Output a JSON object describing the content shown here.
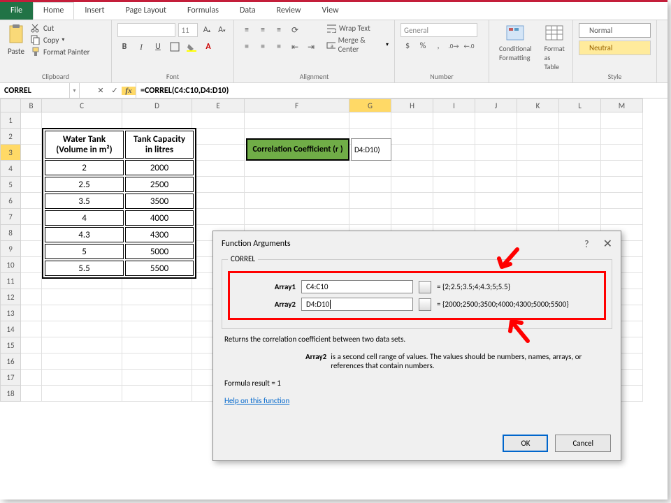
{
  "tabs": {
    "file": "File",
    "home": "Home",
    "insert": "Insert",
    "pageLayout": "Page Layout",
    "formulas": "Formulas",
    "data": "Data",
    "review": "Review",
    "view": "View"
  },
  "ribbon": {
    "clipboard": {
      "label": "Clipboard",
      "paste": "Paste",
      "cut": "Cut",
      "copy": "Copy",
      "formatPainter": "Format Painter"
    },
    "font": {
      "label": "Font",
      "size": "11",
      "bold": "B",
      "italic": "I",
      "underline": "U"
    },
    "alignment": {
      "label": "Alignment",
      "wrap": "Wrap Text",
      "merge": "Merge & Center"
    },
    "number": {
      "label": "Number",
      "general": "General",
      "dollar": "$",
      "percent": "%",
      "comma": ","
    },
    "styles": {
      "label": "Style",
      "condFmt": "Conditional Formatting",
      "fmtTable": "Format as Table",
      "normal": "Normal",
      "neutral": "Neutral"
    }
  },
  "formulaBar": {
    "nameBox": "CORREL",
    "formula": "=CORREL(C4:C10,D4:D10)"
  },
  "columns": [
    "B",
    "C",
    "D",
    "E",
    "F",
    "G",
    "H",
    "I",
    "J",
    "K",
    "L",
    "M"
  ],
  "rows": [
    1,
    2,
    3,
    4,
    5,
    6,
    7,
    8,
    9,
    10,
    11,
    12,
    13,
    14,
    15,
    16,
    17,
    18
  ],
  "table": {
    "headers": [
      "Water Tank (Volume in m²)",
      "Tank Capacity in litres"
    ],
    "rows": [
      [
        "2",
        "2000"
      ],
      [
        "2.5",
        "2500"
      ],
      [
        "3.5",
        "3500"
      ],
      [
        "4",
        "4000"
      ],
      [
        "4.3",
        "4300"
      ],
      [
        "5",
        "5000"
      ],
      [
        "5.5",
        "5500"
      ]
    ]
  },
  "greenCell": {
    "label": "Correlation Coefficient (r )",
    "editPart": "D4:D10)"
  },
  "dialog": {
    "title": "Function Arguments",
    "func": "CORREL",
    "args": [
      {
        "label": "Array1",
        "value": "C4:C10",
        "result": "{2;2.5;3.5;4;4.3;5;5.5}"
      },
      {
        "label": "Array2",
        "value": "D4:D10",
        "result": "{2000;2500;3500;4000;4300;5000;5500}"
      }
    ],
    "desc": "Returns the correlation coefficient between two data sets.",
    "argDesc": {
      "name": "Array2",
      "text": "is a second cell range of values. The values should be numbers, names, arrays, or references that contain numbers."
    },
    "formulaResult": "Formula result =   1",
    "helpLink": "Help on this function",
    "ok": "OK",
    "cancel": "Cancel"
  },
  "colors": {
    "accent": "#70ad47",
    "annotate": "#ff0000"
  }
}
